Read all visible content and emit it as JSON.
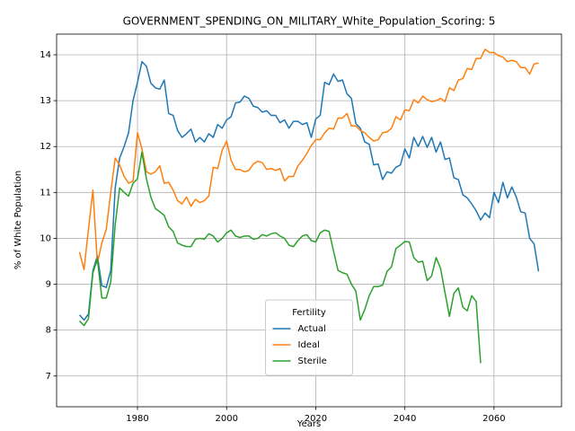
{
  "chart_data": {
    "type": "line",
    "title": "GOVERNMENT_SPENDING_ON_MILITARY_White_Population_Scoring: 5",
    "x_label": "Years",
    "y_label": "% of White Population",
    "legend_title": "Fertility",
    "legend_position": "lower center",
    "grid": true,
    "x": [
      1967,
      1968,
      1969,
      1970,
      1971,
      1972,
      1973,
      1974,
      1975,
      1976,
      1977,
      1978,
      1979,
      1980,
      1981,
      1982,
      1983,
      1984,
      1985,
      1986,
      1987,
      1988,
      1989,
      1990,
      1991,
      1992,
      1993,
      1994,
      1995,
      1996,
      1997,
      1998,
      1999,
      2000,
      2001,
      2002,
      2003,
      2004,
      2005,
      2006,
      2007,
      2008,
      2009,
      2010,
      2011,
      2012,
      2013,
      2014,
      2015,
      2016,
      2017,
      2018,
      2019,
      2020,
      2021,
      2022,
      2023,
      2024,
      2025,
      2026,
      2027,
      2028,
      2029,
      2030,
      2031,
      2032,
      2033,
      2034,
      2035,
      2036,
      2037,
      2038,
      2039,
      2040,
      2041,
      2042,
      2043,
      2044,
      2045,
      2046,
      2047,
      2048,
      2049,
      2050,
      2051,
      2052,
      2053,
      2054,
      2055,
      2056,
      2057,
      2058,
      2059,
      2060,
      2061,
      2062,
      2063,
      2064,
      2065,
      2066,
      2067,
      2068,
      2069,
      2070
    ],
    "series": [
      {
        "name": "Actual",
        "color": "#1f77b4",
        "values": [
          8.33,
          8.22,
          8.35,
          9.3,
          9.62,
          8.97,
          8.93,
          9.3,
          11.1,
          11.75,
          12.0,
          12.3,
          13.0,
          13.4,
          13.85,
          13.75,
          13.38,
          13.28,
          13.25,
          13.45,
          12.72,
          12.68,
          12.35,
          12.2,
          12.28,
          12.38,
          12.1,
          12.2,
          12.1,
          12.28,
          12.2,
          12.48,
          12.4,
          12.58,
          12.65,
          12.95,
          12.97,
          13.1,
          13.05,
          12.88,
          12.85,
          12.75,
          12.78,
          12.68,
          12.68,
          12.52,
          12.58,
          12.4,
          12.55,
          12.55,
          12.48,
          12.52,
          12.2,
          12.6,
          12.68,
          13.4,
          13.35,
          13.58,
          13.42,
          13.45,
          13.15,
          13.05,
          12.5,
          12.4,
          12.1,
          12.05,
          11.6,
          11.62,
          11.28,
          11.45,
          11.42,
          11.55,
          11.6,
          11.95,
          11.75,
          12.2,
          12.0,
          12.22,
          11.98,
          12.2,
          11.88,
          12.1,
          11.72,
          11.75,
          11.32,
          11.28,
          10.95,
          10.88,
          10.75,
          10.6,
          10.4,
          10.55,
          10.45,
          11.0,
          10.78,
          11.22,
          10.88,
          11.12,
          10.9,
          10.58,
          10.55,
          10.0,
          9.88,
          9.28
        ]
      },
      {
        "name": "Ideal",
        "color": "#ff7f0e",
        "values": [
          9.7,
          9.32,
          10.2,
          11.05,
          9.45,
          9.9,
          10.2,
          11.0,
          11.75,
          11.6,
          11.35,
          11.2,
          11.25,
          12.3,
          11.95,
          11.45,
          11.4,
          11.45,
          11.58,
          11.2,
          11.22,
          11.05,
          10.82,
          10.75,
          10.9,
          10.7,
          10.85,
          10.78,
          10.82,
          10.92,
          11.55,
          11.52,
          11.92,
          12.12,
          11.7,
          11.5,
          11.5,
          11.45,
          11.48,
          11.62,
          11.68,
          11.65,
          11.5,
          11.52,
          11.48,
          11.52,
          11.25,
          11.35,
          11.35,
          11.58,
          11.7,
          11.85,
          12.02,
          12.15,
          12.15,
          12.3,
          12.4,
          12.38,
          12.62,
          12.62,
          12.72,
          12.45,
          12.45,
          12.35,
          12.3,
          12.2,
          12.12,
          12.15,
          12.3,
          12.32,
          12.4,
          12.65,
          12.58,
          12.8,
          12.78,
          13.02,
          12.95,
          13.1,
          13.02,
          12.98,
          13.0,
          13.05,
          12.98,
          13.28,
          13.22,
          13.45,
          13.48,
          13.7,
          13.68,
          13.92,
          13.92,
          14.12,
          14.05,
          14.05,
          13.98,
          13.95,
          13.85,
          13.88,
          13.85,
          13.72,
          13.72,
          13.58,
          13.8,
          13.82
        ]
      },
      {
        "name": "Sterile",
        "color": "#2ca02c",
        "values": [
          8.2,
          8.1,
          8.25,
          9.25,
          9.55,
          8.7,
          8.7,
          9.05,
          10.3,
          11.1,
          11.0,
          10.92,
          11.2,
          11.3,
          11.88,
          11.3,
          10.9,
          10.65,
          10.58,
          10.5,
          10.25,
          10.15,
          9.9,
          9.85,
          9.82,
          9.82,
          9.98,
          10.0,
          9.98,
          10.1,
          10.05,
          9.92,
          10.0,
          10.12,
          10.18,
          10.05,
          10.02,
          10.05,
          10.05,
          9.98,
          10.0,
          10.08,
          10.05,
          10.1,
          10.12,
          10.05,
          10.0,
          9.85,
          9.82,
          9.95,
          10.05,
          10.08,
          9.95,
          9.92,
          10.12,
          10.18,
          10.15,
          9.72,
          9.3,
          9.25,
          9.22,
          9.0,
          8.85,
          8.22,
          8.45,
          8.75,
          8.95,
          8.95,
          8.98,
          9.28,
          9.38,
          9.78,
          9.85,
          9.93,
          9.92,
          9.58,
          9.48,
          9.5,
          9.08,
          9.18,
          9.58,
          9.35,
          8.82,
          8.3,
          8.8,
          8.92,
          8.5,
          8.42,
          8.75,
          8.62,
          7.28,
          null,
          null,
          null,
          null,
          null,
          null,
          null,
          null,
          null,
          null,
          null,
          null,
          null
        ]
      }
    ],
    "xlim": [
      1961.85,
      2075.15
    ],
    "xticks": [
      1980,
      2000,
      2020,
      2040,
      2060
    ],
    "ylim": [
      6.33,
      14.45
    ],
    "yticks": [
      7,
      8,
      9,
      10,
      11,
      12,
      13,
      14
    ]
  }
}
